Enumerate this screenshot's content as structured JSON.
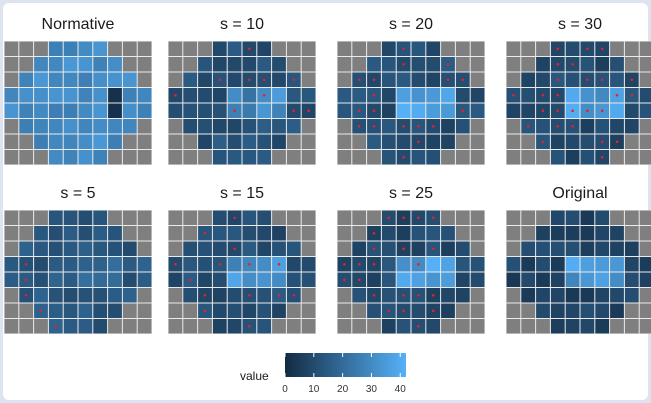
{
  "chart_data": {
    "type": "heatmap",
    "grid": {
      "cols": 10,
      "rows": 8
    },
    "colors": {
      "low": "#132b43",
      "high": "#56b1f7",
      "mask": "#7f7f7f",
      "panel_bg": "#ebebeb",
      "marker": "#e8202a"
    },
    "legend": {
      "title": "value",
      "ticks": [
        "0",
        "10",
        "20",
        "30",
        "40"
      ],
      "min": 0,
      "max": 42
    },
    "panels": [
      {
        "title": "Normative",
        "base": 30,
        "spot": 0,
        "seed": 1,
        "markers": 0,
        "blind": true
      },
      {
        "title": "s = 10",
        "base": 12,
        "spot": 22,
        "seed": 2,
        "markers": 10
      },
      {
        "title": "s = 20",
        "base": 11,
        "spot": 28,
        "seed": 3,
        "markers": 18
      },
      {
        "title": "s = 30",
        "base": 10,
        "spot": 30,
        "seed": 4,
        "markers": 26
      },
      {
        "title": "s = 5",
        "base": 14,
        "spot": 4,
        "seed": 5,
        "markers": 5
      },
      {
        "title": "s = 15",
        "base": 11,
        "spot": 25,
        "seed": 6,
        "markers": 14
      },
      {
        "title": "s = 25",
        "base": 10,
        "spot": 29,
        "seed": 7,
        "markers": 22
      },
      {
        "title": "Original",
        "base": 8,
        "spot": 30,
        "seed": 8,
        "markers": 0
      }
    ]
  }
}
